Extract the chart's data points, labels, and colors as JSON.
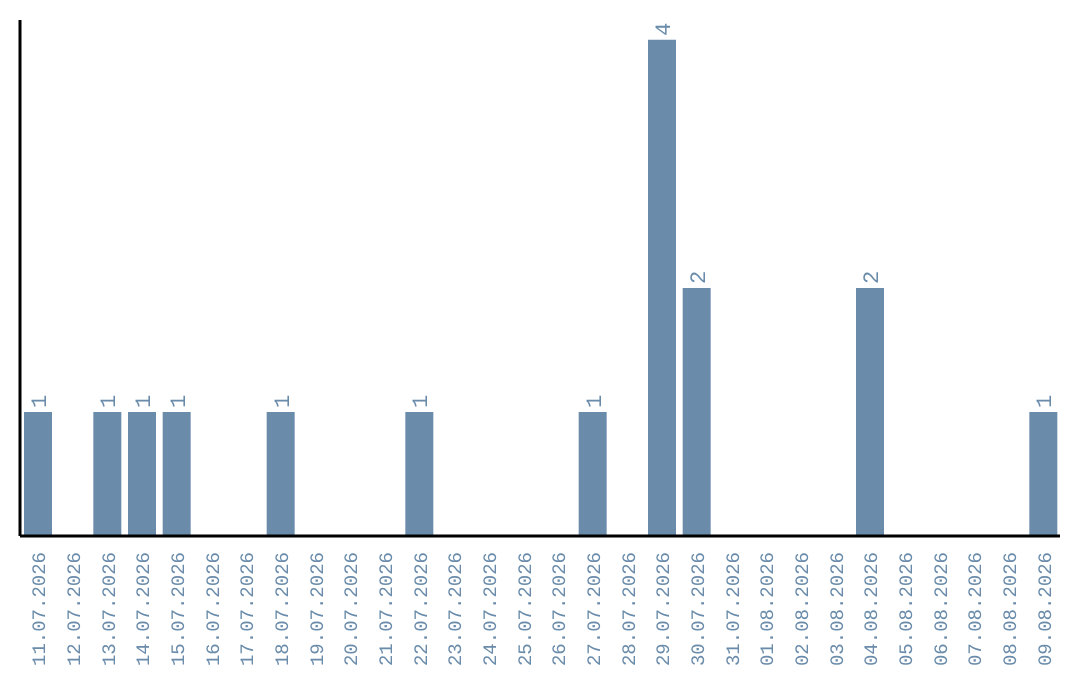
{
  "chart_data": {
    "type": "bar",
    "categories": [
      "11.07.2026",
      "12.07.2026",
      "13.07.2026",
      "14.07.2026",
      "15.07.2026",
      "16.07.2026",
      "17.07.2026",
      "18.07.2026",
      "19.07.2026",
      "20.07.2026",
      "21.07.2026",
      "22.07.2026",
      "23.07.2026",
      "24.07.2026",
      "25.07.2026",
      "26.07.2026",
      "27.07.2026",
      "28.07.2026",
      "29.07.2026",
      "30.07.2026",
      "31.07.2026",
      "01.08.2026",
      "02.08.2026",
      "03.08.2026",
      "04.08.2026",
      "05.08.2026",
      "06.08.2026",
      "07.08.2026",
      "08.08.2026",
      "09.08.2026"
    ],
    "values": [
      1,
      0,
      1,
      1,
      1,
      0,
      0,
      1,
      0,
      0,
      0,
      1,
      0,
      0,
      0,
      0,
      1,
      0,
      4,
      2,
      0,
      0,
      0,
      0,
      2,
      0,
      0,
      0,
      0,
      1
    ],
    "value_labels": [
      "1",
      null,
      "1",
      "1",
      "1",
      null,
      null,
      "1",
      null,
      null,
      null,
      "1",
      null,
      null,
      null,
      null,
      "1",
      null,
      "4",
      "2",
      null,
      null,
      null,
      null,
      "2",
      null,
      null,
      null,
      null,
      "1"
    ],
    "color": "#6a8caa",
    "grid": false,
    "tick_labels": "x"
  }
}
